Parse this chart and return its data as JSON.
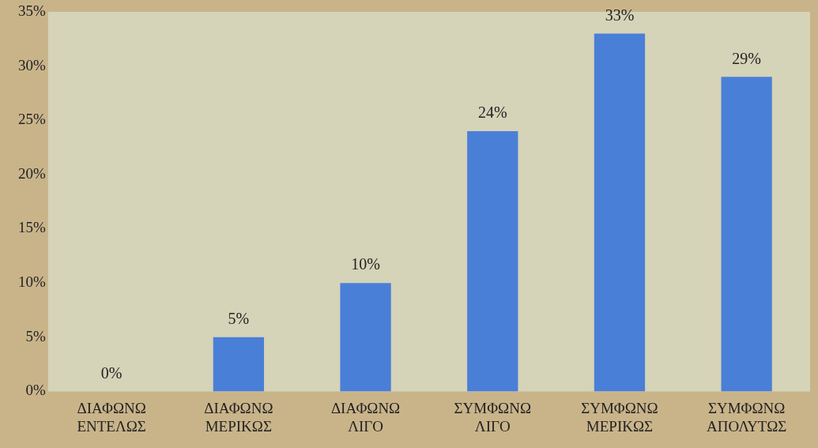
{
  "chart_data": {
    "type": "bar",
    "categories": [
      "ΔΙΑΦΩΝΩ ΕΝΤΕΛΩΣ",
      "ΔΙΑΦΩΝΩ ΜΕΡΙΚΩΣ",
      "ΔΙΑΦΩΝΩ ΛΙΓΟ",
      "ΣΥΜΦΩΝΩ ΛΙΓΟ",
      "ΣΥΜΦΩΝΩ ΜΕΡΙΚΩΣ",
      "ΣΥΜΦΩΝΩ ΑΠΟΛΥΤΩΣ"
    ],
    "values": [
      0,
      5,
      10,
      24,
      33,
      29
    ],
    "value_labels": [
      "0%",
      "5%",
      "10%",
      "24%",
      "33%",
      "29%"
    ],
    "color": "#4a7fd8",
    "ylim": [
      0,
      35
    ],
    "yticks": [
      {
        "value": 0,
        "label": "0%"
      },
      {
        "value": 5,
        "label": "5%"
      },
      {
        "value": 10,
        "label": "10%"
      },
      {
        "value": 15,
        "label": "15%"
      },
      {
        "value": 20,
        "label": "20%"
      },
      {
        "value": 25,
        "label": "25%"
      },
      {
        "value": 30,
        "label": "30%"
      },
      {
        "value": 35,
        "label": "35%"
      }
    ],
    "grid": false,
    "legend": false
  }
}
